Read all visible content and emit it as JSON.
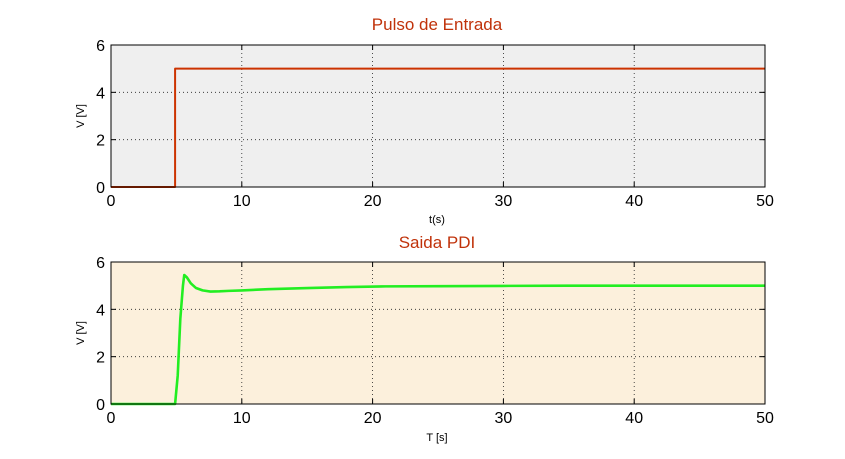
{
  "chart_data": [
    {
      "type": "line",
      "title": "Pulso de Entrada",
      "xlabel": "t(s)",
      "ylabel": "V [V]",
      "xlim": [
        0,
        50
      ],
      "ylim": [
        0,
        6
      ],
      "xticks": [
        0,
        10,
        20,
        30,
        40,
        50
      ],
      "yticks": [
        0,
        2,
        4,
        6
      ],
      "grid": true,
      "background": "#efefef",
      "series": [
        {
          "color": "#cc3300",
          "points": [
            [
              0,
              0
            ],
            [
              4.9,
              0
            ],
            [
              4.9,
              5
            ],
            [
              50,
              5
            ]
          ]
        }
      ]
    },
    {
      "type": "line",
      "title": "Saida PDI",
      "xlabel": "T [s]",
      "ylabel": "V [V]",
      "xlim": [
        0,
        50
      ],
      "ylim": [
        0,
        6
      ],
      "xticks": [
        0,
        10,
        20,
        30,
        40,
        50
      ],
      "yticks": [
        0,
        2,
        4,
        6
      ],
      "grid": true,
      "background": "#fcf0dc",
      "series": [
        {
          "color": "#22ee22",
          "points": [
            [
              0,
              0
            ],
            [
              4.9,
              0
            ],
            [
              5.1,
              1.2
            ],
            [
              5.3,
              3.6
            ],
            [
              5.5,
              5.0
            ],
            [
              5.6,
              5.45
            ],
            [
              5.8,
              5.35
            ],
            [
              6.1,
              5.1
            ],
            [
              6.5,
              4.9
            ],
            [
              7.0,
              4.8
            ],
            [
              7.6,
              4.75
            ],
            [
              8.3,
              4.76
            ],
            [
              9.0,
              4.78
            ],
            [
              10,
              4.8
            ],
            [
              12,
              4.85
            ],
            [
              15,
              4.9
            ],
            [
              18,
              4.94
            ],
            [
              21,
              4.97
            ],
            [
              25,
              4.98
            ],
            [
              30,
              4.99
            ],
            [
              35,
              5.0
            ],
            [
              50,
              5.0
            ]
          ]
        }
      ]
    }
  ]
}
